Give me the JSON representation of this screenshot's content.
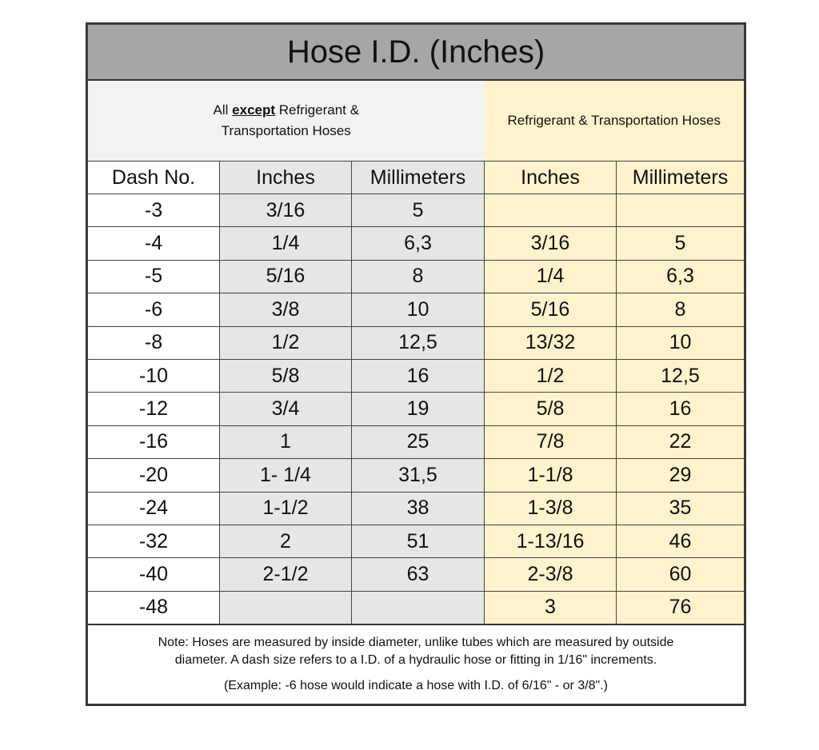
{
  "title": "Hose I.D. (Inches)",
  "group_left": {
    "prefix": "All",
    "emphasis": "except",
    "suffix": "Refrigerant &",
    "line2": "Transportation Hoses"
  },
  "group_right": "Refrigerant & Transportation Hoses",
  "headers": [
    "Dash No.",
    "Inches",
    "Millimeters",
    "Inches",
    "Millimeters"
  ],
  "rows": [
    [
      "-3",
      "3/16",
      "5",
      "",
      ""
    ],
    [
      "-4",
      "1/4",
      "6,3",
      "3/16",
      "5"
    ],
    [
      "-5",
      "5/16",
      "8",
      "1/4",
      "6,3"
    ],
    [
      "-6",
      "3/8",
      "10",
      "5/16",
      "8"
    ],
    [
      "-8",
      "1/2",
      "12,5",
      "13/32",
      "10"
    ],
    [
      "-10",
      "5/8",
      "16",
      "1/2",
      "12,5"
    ],
    [
      "-12",
      "3/4",
      "19",
      "5/8",
      "16"
    ],
    [
      "-16",
      "1",
      "25",
      "7/8",
      "22"
    ],
    [
      "-20",
      "1- 1/4",
      "31,5",
      "1-1/8",
      "29"
    ],
    [
      "-24",
      "1-1/2",
      "38",
      "1-3/8",
      "35"
    ],
    [
      "-32",
      "2",
      "51",
      "1-13/16",
      "46"
    ],
    [
      "-40",
      "2-1/2",
      "63",
      "2-3/8",
      "60"
    ],
    [
      "-48",
      "",
      "",
      "3",
      "76"
    ]
  ],
  "note": {
    "line1": "Note: Hoses are measured by inside diameter, unlike tubes which are measured by outside",
    "line2": "diameter. A dash size refers to a I.D. of a hydraulic hose or fitting in 1/16\" increments.",
    "example": "(Example:  -6 hose would indicate a hose with I.D. of 6/16\" - or 3/8\".)"
  },
  "colors": {
    "title_bg": "#a6a6a6",
    "standard_bg": "#e7e6e6",
    "refrigerant_bg": "#fff2cc"
  }
}
